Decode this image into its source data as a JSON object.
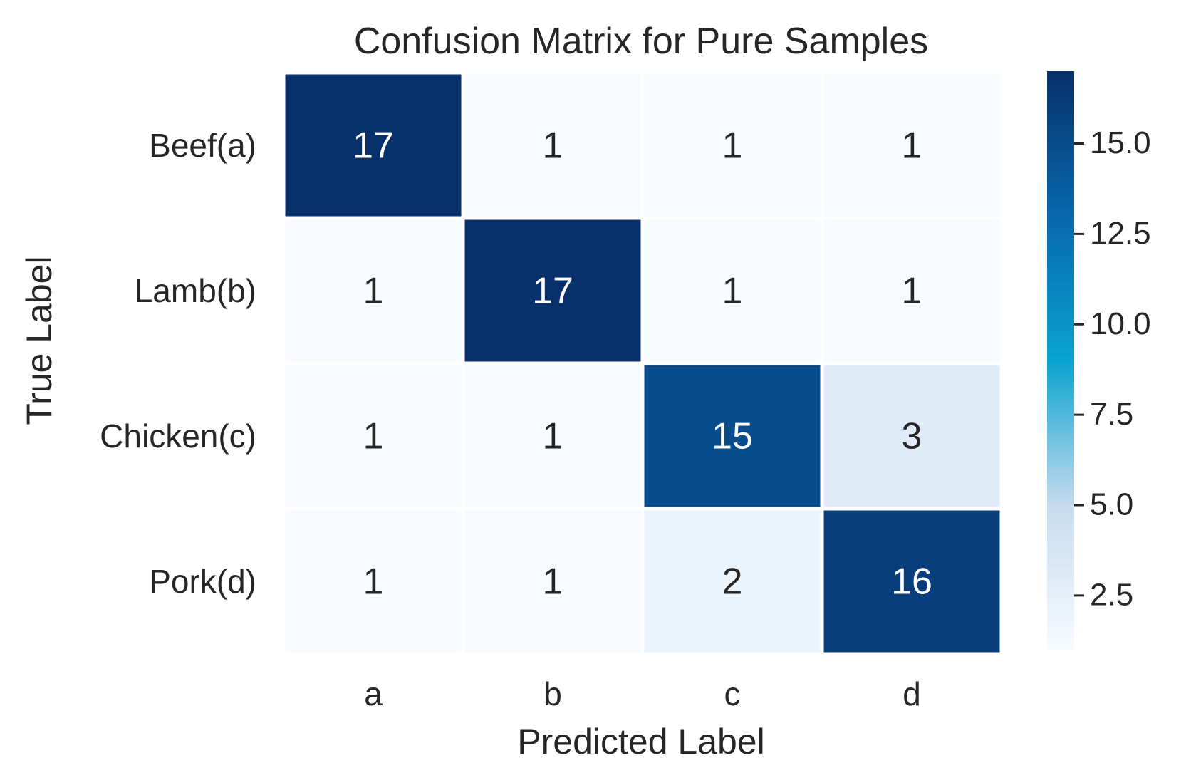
{
  "chart_data": {
    "type": "heatmap",
    "title": "Confusion Matrix for Pure Samples",
    "xlabel": "Predicted Label",
    "ylabel": "True Label",
    "x_categories": [
      "a",
      "b",
      "c",
      "d"
    ],
    "y_categories": [
      "Beef(a)",
      "Lamb(b)",
      "Chicken(c)",
      "Pork(d)"
    ],
    "values": [
      [
        17,
        1,
        1,
        1
      ],
      [
        1,
        17,
        1,
        1
      ],
      [
        1,
        1,
        15,
        3
      ],
      [
        1,
        1,
        2,
        16
      ]
    ],
    "colorbar": {
      "range": [
        1,
        17
      ],
      "ticks": [
        2.5,
        5.0,
        7.5,
        10.0,
        12.5,
        15.0
      ],
      "tick_labels": [
        "2.5",
        "5.0",
        "7.5",
        "10.0",
        "12.5",
        "15.0"
      ],
      "colormap": "Blues"
    },
    "colors": {
      "low": "#f7fbff",
      "mid_low": "#c6dbef",
      "mid": "#0aa3cf",
      "high": "#08306b",
      "text_dark": "#262626",
      "text_light": "#ffffff"
    }
  }
}
